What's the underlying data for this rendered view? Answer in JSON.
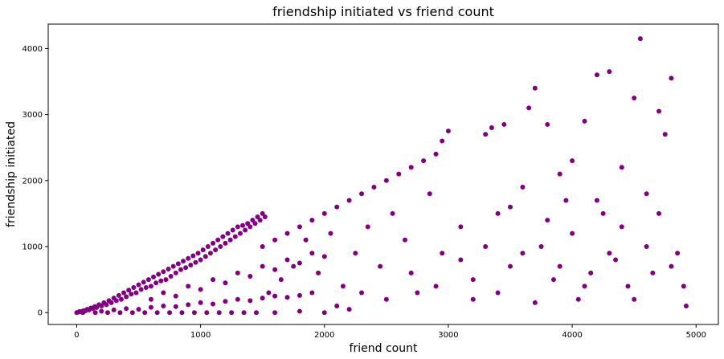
{
  "chart_data": {
    "type": "scatter",
    "title": "friendship initiated vs friend count",
    "xlabel": "friend count",
    "ylabel": "friendship initiated",
    "xlim": [
      -230,
      5180
    ],
    "ylim": [
      -180,
      4370
    ],
    "xticks": [
      0,
      1000,
      2000,
      3000,
      4000,
      5000
    ],
    "yticks": [
      0,
      1000,
      2000,
      3000,
      4000
    ],
    "marker_color": "#800080",
    "grid": false,
    "legend": "none",
    "series": [
      {
        "points": [
          [
            0,
            0
          ],
          [
            15,
            8
          ],
          [
            25,
            18
          ],
          [
            40,
            12
          ],
          [
            55,
            30
          ],
          [
            70,
            25
          ],
          [
            85,
            50
          ],
          [
            100,
            40
          ],
          [
            115,
            70
          ],
          [
            130,
            60
          ],
          [
            145,
            90
          ],
          [
            160,
            75
          ],
          [
            180,
            120
          ],
          [
            200,
            100
          ],
          [
            220,
            150
          ],
          [
            240,
            120
          ],
          [
            260,
            180
          ],
          [
            280,
            150
          ],
          [
            300,
            220
          ],
          [
            320,
            180
          ],
          [
            340,
            260
          ],
          [
            360,
            200
          ],
          [
            380,
            300
          ],
          [
            400,
            240
          ],
          [
            420,
            340
          ],
          [
            440,
            280
          ],
          [
            460,
            380
          ],
          [
            480,
            300
          ],
          [
            500,
            420
          ],
          [
            520,
            350
          ],
          [
            540,
            460
          ],
          [
            560,
            380
          ],
          [
            580,
            500
          ],
          [
            600,
            400
          ],
          [
            620,
            540
          ],
          [
            640,
            450
          ],
          [
            660,
            580
          ],
          [
            680,
            480
          ],
          [
            700,
            620
          ],
          [
            720,
            500
          ],
          [
            740,
            660
          ],
          [
            760,
            550
          ],
          [
            780,
            700
          ],
          [
            800,
            600
          ],
          [
            820,
            740
          ],
          [
            840,
            650
          ],
          [
            860,
            780
          ],
          [
            880,
            680
          ],
          [
            900,
            820
          ],
          [
            920,
            720
          ],
          [
            940,
            860
          ],
          [
            960,
            760
          ],
          [
            980,
            900
          ],
          [
            1000,
            800
          ],
          [
            1020,
            950
          ],
          [
            1040,
            850
          ],
          [
            1060,
            1000
          ],
          [
            1080,
            900
          ],
          [
            1100,
            1050
          ],
          [
            1120,
            950
          ],
          [
            1140,
            1100
          ],
          [
            1160,
            1000
          ],
          [
            1180,
            1150
          ],
          [
            1200,
            1050
          ],
          [
            1220,
            1200
          ],
          [
            1240,
            1100
          ],
          [
            1260,
            1250
          ],
          [
            1280,
            1150
          ],
          [
            1300,
            1300
          ],
          [
            1320,
            1200
          ],
          [
            1340,
            1320
          ],
          [
            1360,
            1250
          ],
          [
            1380,
            1350
          ],
          [
            1400,
            1300
          ],
          [
            1420,
            1400
          ],
          [
            1440,
            1350
          ],
          [
            1460,
            1450
          ],
          [
            1480,
            1400
          ],
          [
            1500,
            1500
          ],
          [
            1520,
            1450
          ],
          [
            200,
            20
          ],
          [
            300,
            40
          ],
          [
            400,
            60
          ],
          [
            500,
            50
          ],
          [
            600,
            80
          ],
          [
            700,
            100
          ],
          [
            800,
            90
          ],
          [
            900,
            120
          ],
          [
            1000,
            150
          ],
          [
            1100,
            130
          ],
          [
            1200,
            170
          ],
          [
            1300,
            200
          ],
          [
            1400,
            180
          ],
          [
            1500,
            220
          ],
          [
            1600,
            250
          ],
          [
            1700,
            230
          ],
          [
            1800,
            260
          ],
          [
            1900,
            300
          ],
          [
            600,
            200
          ],
          [
            700,
            300
          ],
          [
            800,
            250
          ],
          [
            900,
            400
          ],
          [
            1000,
            350
          ],
          [
            1100,
            500
          ],
          [
            1200,
            450
          ],
          [
            1300,
            600
          ],
          [
            1400,
            550
          ],
          [
            1500,
            700
          ],
          [
            1600,
            650
          ],
          [
            1700,
            800
          ],
          [
            1800,
            750
          ],
          [
            1900,
            900
          ],
          [
            2000,
            850
          ],
          [
            1500,
            1000
          ],
          [
            1600,
            1100
          ],
          [
            1700,
            1200
          ],
          [
            1800,
            1300
          ],
          [
            1900,
            1400
          ],
          [
            2000,
            1500
          ],
          [
            2100,
            1600
          ],
          [
            2200,
            1700
          ],
          [
            2300,
            1800
          ],
          [
            2400,
            1900
          ],
          [
            2500,
            2000
          ],
          [
            2600,
            2100
          ],
          [
            2700,
            2200
          ],
          [
            2800,
            2300
          ],
          [
            2900,
            2400
          ],
          [
            2950,
            2600
          ],
          [
            3000,
            2750
          ],
          [
            1550,
            300
          ],
          [
            1650,
            500
          ],
          [
            1750,
            700
          ],
          [
            1850,
            1100
          ],
          [
            1950,
            600
          ],
          [
            2050,
            1200
          ],
          [
            2150,
            400
          ],
          [
            2250,
            900
          ],
          [
            2350,
            1300
          ],
          [
            2450,
            700
          ],
          [
            2550,
            1500
          ],
          [
            2650,
            1100
          ],
          [
            2750,
            300
          ],
          [
            2850,
            1800
          ],
          [
            2950,
            900
          ],
          [
            2100,
            100
          ],
          [
            2300,
            300
          ],
          [
            2500,
            200
          ],
          [
            2700,
            600
          ],
          [
            2900,
            400
          ],
          [
            3100,
            800
          ],
          [
            3200,
            200
          ],
          [
            3300,
            2700
          ],
          [
            3350,
            2800
          ],
          [
            3400,
            1500
          ],
          [
            3450,
            2850
          ],
          [
            3500,
            700
          ],
          [
            3600,
            1900
          ],
          [
            3650,
            3100
          ],
          [
            3700,
            3400
          ],
          [
            3750,
            1000
          ],
          [
            3800,
            2850
          ],
          [
            3850,
            500
          ],
          [
            3900,
            2100
          ],
          [
            3950,
            1700
          ],
          [
            4000,
            1200
          ],
          [
            4050,
            200
          ],
          [
            4100,
            2900
          ],
          [
            4150,
            600
          ],
          [
            4200,
            3600
          ],
          [
            4250,
            1500
          ],
          [
            4300,
            3650
          ],
          [
            4350,
            800
          ],
          [
            4400,
            2200
          ],
          [
            4450,
            400
          ],
          [
            4500,
            3250
          ],
          [
            4550,
            4150
          ],
          [
            4600,
            1800
          ],
          [
            4650,
            600
          ],
          [
            4700,
            3050
          ],
          [
            4750,
            2700
          ],
          [
            4800,
            3550
          ],
          [
            4850,
            900
          ],
          [
            4900,
            400
          ],
          [
            4920,
            100
          ],
          [
            3100,
            1300
          ],
          [
            3200,
            500
          ],
          [
            3300,
            1000
          ],
          [
            3400,
            300
          ],
          [
            3500,
            1600
          ],
          [
            3600,
            900
          ],
          [
            3700,
            150
          ],
          [
            3800,
            1400
          ],
          [
            3900,
            700
          ],
          [
            4000,
            2300
          ],
          [
            4100,
            400
          ],
          [
            4200,
            1700
          ],
          [
            4300,
            900
          ],
          [
            4400,
            1300
          ],
          [
            4500,
            200
          ],
          [
            4600,
            1000
          ],
          [
            4700,
            1500
          ],
          [
            4800,
            700
          ],
          [
            50,
            0
          ],
          [
            150,
            0
          ],
          [
            250,
            0
          ],
          [
            350,
            0
          ],
          [
            450,
            0
          ],
          [
            550,
            0
          ],
          [
            650,
            0
          ],
          [
            750,
            0
          ],
          [
            850,
            0
          ],
          [
            950,
            0
          ],
          [
            1050,
            0
          ],
          [
            1150,
            0
          ],
          [
            1250,
            0
          ],
          [
            1350,
            0
          ],
          [
            1450,
            0
          ],
          [
            1600,
            0
          ],
          [
            1800,
            20
          ],
          [
            2000,
            0
          ],
          [
            2200,
            50
          ]
        ]
      }
    ]
  }
}
